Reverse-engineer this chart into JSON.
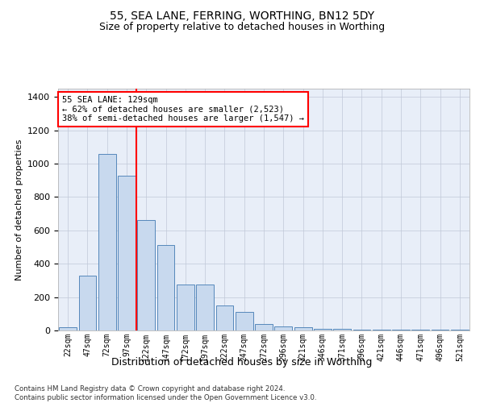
{
  "title1": "55, SEA LANE, FERRING, WORTHING, BN12 5DY",
  "title2": "Size of property relative to detached houses in Worthing",
  "xlabel": "Distribution of detached houses by size in Worthing",
  "ylabel": "Number of detached properties",
  "categories": [
    "22sqm",
    "47sqm",
    "72sqm",
    "97sqm",
    "122sqm",
    "147sqm",
    "172sqm",
    "197sqm",
    "222sqm",
    "247sqm",
    "272sqm",
    "296sqm",
    "321sqm",
    "346sqm",
    "371sqm",
    "396sqm",
    "421sqm",
    "446sqm",
    "471sqm",
    "496sqm",
    "521sqm"
  ],
  "values": [
    20,
    330,
    1060,
    930,
    660,
    510,
    275,
    275,
    150,
    110,
    40,
    25,
    20,
    10,
    8,
    5,
    5,
    5,
    3,
    3,
    3
  ],
  "bar_color": "#c8d9ee",
  "bar_edge_color": "#5588bb",
  "red_line_x": 3.5,
  "annotation_line1": "55 SEA LANE: 129sqm",
  "annotation_line2": "← 62% of detached houses are smaller (2,523)",
  "annotation_line3": "38% of semi-detached houses are larger (1,547) →",
  "footnote": "Contains HM Land Registry data © Crown copyright and database right 2024.\nContains public sector information licensed under the Open Government Licence v3.0.",
  "ylim": [
    0,
    1450
  ],
  "yticks": [
    0,
    200,
    400,
    600,
    800,
    1000,
    1200,
    1400
  ],
  "background_color": "#ffffff",
  "plot_bg_color": "#e8eef8",
  "grid_color": "#c0c8d8"
}
